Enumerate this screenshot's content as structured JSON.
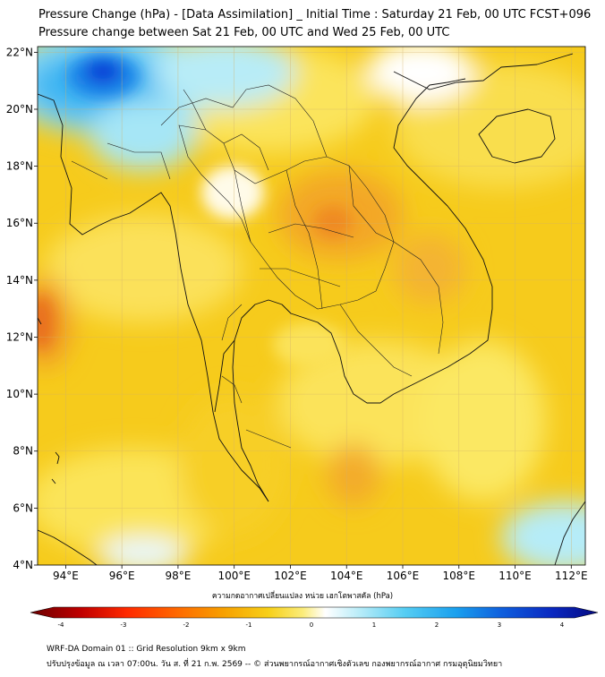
{
  "titles": {
    "line1": "Pressure Change (hPa) - [Data Assimilation] _ Initial Time : Saturday 21 Feb, 00 UTC FCST+096",
    "line2": "Pressure change between Sat 21 Feb, 00 UTC and Wed 25 Feb, 00 UTC"
  },
  "map": {
    "lon_labels": [
      "94°E",
      "96°E",
      "98°E",
      "100°E",
      "102°E",
      "104°E",
      "106°E",
      "108°E",
      "110°E",
      "112°E"
    ],
    "lon_values": [
      94,
      96,
      98,
      100,
      102,
      104,
      106,
      108,
      110,
      112
    ],
    "lat_labels": [
      "22°N",
      "20°N",
      "18°N",
      "16°N",
      "14°N",
      "12°N",
      "10°N",
      "8°N",
      "6°N",
      "4°N"
    ],
    "lat_values": [
      22,
      20,
      18,
      16,
      14,
      12,
      10,
      8,
      6,
      4
    ],
    "lon_range": [
      93,
      112.5
    ],
    "lat_range": [
      4,
      22.2
    ],
    "grid": true,
    "colors": {
      "background": "#f5c81a",
      "positive_blue": "#19a8f0",
      "negative_orange": "#ef8a20",
      "neutral_white": "#ffffff"
    }
  },
  "colorbar": {
    "label": "ความกดอากาศเปลี่ยนแปลง หน่วย เฮกโตพาสคัล (hPa)",
    "ticks": [
      "-4",
      "-3",
      "-2",
      "-1",
      "0",
      "1",
      "2",
      "3",
      "4"
    ],
    "tick_values": [
      -4,
      -3,
      -2,
      -1,
      0,
      1,
      2,
      3,
      4
    ],
    "colors": [
      "#7a0000",
      "#d40000",
      "#ff3300",
      "#ff7a00",
      "#f5b400",
      "#fbe84a",
      "#ffffff",
      "#9ee6f5",
      "#33c6f2",
      "#1077e6",
      "#0a1fbf",
      "#050a80"
    ]
  },
  "footer": {
    "line1": "WRF-DA Domain 01 :: Grid Resolution 9km x 9km",
    "line2": "ปรับปรุงข้อมูล ณ เวลา 07:00น. วัน ส. ที่ 21 ก.พ. 2569 -- © ส่วนพยากรณ์อากาศเชิงตัวเลข กองพยากรณ์อากาศ กรมอุตุนิยมวิทยา"
  }
}
